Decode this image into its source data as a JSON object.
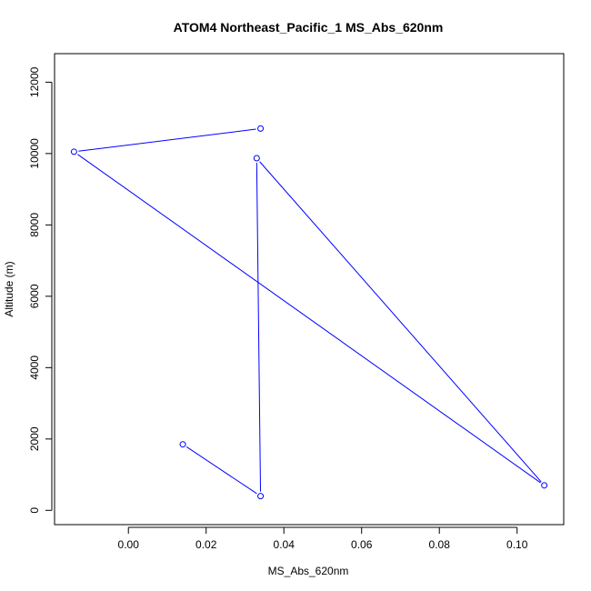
{
  "chart_data": {
    "type": "line",
    "title": "ATOM4 Northeast_Pacific_1 MS_Abs_620nm",
    "xlabel": "MS_Abs_620nm",
    "ylabel": "Altitude (m)",
    "xlim": [
      -0.019,
      0.112
    ],
    "ylim": [
      -400,
      12800
    ],
    "xticks": [
      0.0,
      0.02,
      0.04,
      0.06,
      0.08,
      0.1
    ],
    "xtick_labels": [
      "0.00",
      "0.02",
      "0.04",
      "0.06",
      "0.08",
      "0.10"
    ],
    "yticks": [
      0,
      2000,
      4000,
      6000,
      8000,
      10000,
      12000
    ],
    "ytick_labels": [
      "0",
      "2000",
      "4000",
      "6000",
      "8000",
      "10000",
      "12000"
    ],
    "grid": false,
    "series": [
      {
        "color": "#0000ff",
        "marker": "open-circle",
        "x": [
          0.014,
          0.034,
          0.033,
          0.107,
          -0.014,
          0.034
        ],
        "y": [
          1850,
          400,
          9870,
          700,
          10050,
          10700
        ]
      }
    ]
  }
}
